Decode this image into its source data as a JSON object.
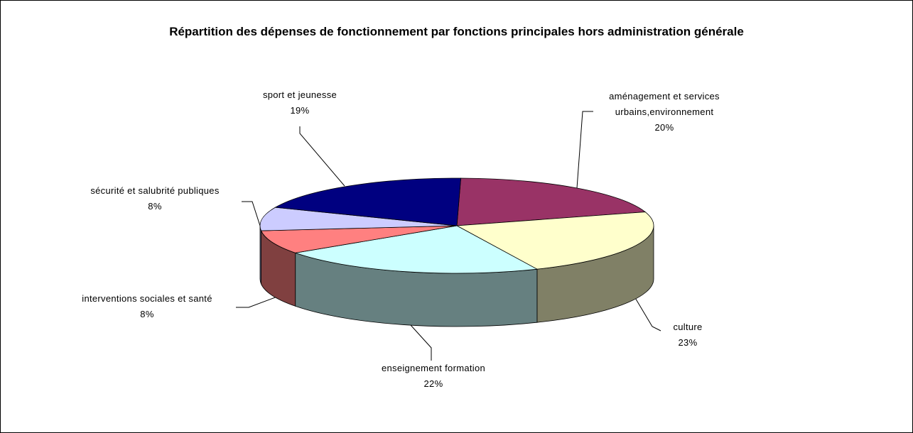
{
  "chart_data": {
    "type": "pie3d",
    "title": "Répartition des dépenses de fonctionnement par fonctions principales hors administration générale",
    "categories": [
      "aménagement et services urbains,environnement",
      "culture",
      "enseignement formation",
      "interventions sociales et santé",
      "sécurité et salubrité publiques",
      "sport et jeunesse"
    ],
    "values": [
      20,
      23,
      22,
      8,
      8,
      19
    ],
    "value_labels": [
      "20%",
      "23%",
      "22%",
      "8%",
      "8%",
      "19%"
    ],
    "colors": [
      "#993366",
      "#ffffcc",
      "#ccffff",
      "#ff8080",
      "#ccccff",
      "#000080"
    ]
  }
}
